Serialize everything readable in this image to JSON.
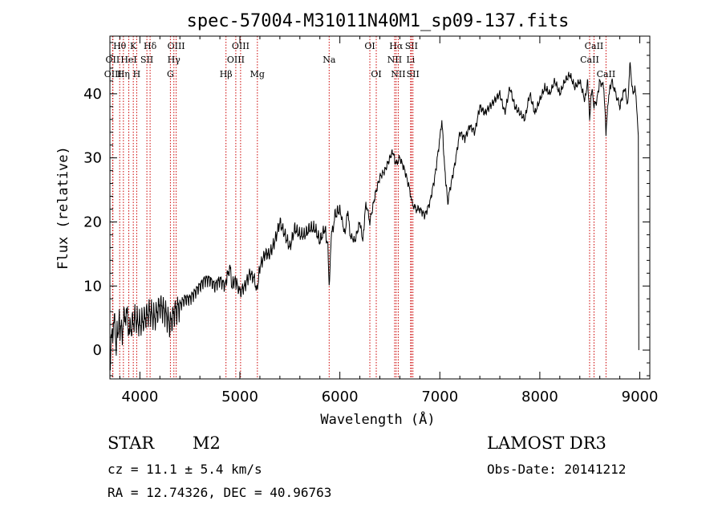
{
  "chart_data": {
    "type": "line",
    "title": "spec-57004-M31011N40M1_sp09-137.fits",
    "xlabel": "Wavelength (Å)",
    "ylabel": "Flux (relative)",
    "xlim": [
      3700,
      9100
    ],
    "ylim": [
      -4.5,
      49
    ],
    "xticks": [
      4000,
      5000,
      6000,
      7000,
      8000,
      9000
    ],
    "yticks": [
      0,
      10,
      20,
      30,
      40
    ],
    "series": [
      {
        "name": "spectrum",
        "x": [
          3700,
          3720,
          3740,
          3760,
          3790,
          3820,
          3860,
          3900,
          3950,
          4000,
          4050,
          4100,
          4150,
          4200,
          4250,
          4300,
          4350,
          4400,
          4450,
          4500,
          4550,
          4600,
          4650,
          4700,
          4750,
          4800,
          4850,
          4880,
          4900,
          4920,
          4950,
          4980,
          5000,
          5050,
          5100,
          5150,
          5170,
          5200,
          5250,
          5300,
          5350,
          5400,
          5450,
          5500,
          5550,
          5600,
          5650,
          5700,
          5750,
          5800,
          5850,
          5880,
          5893,
          5910,
          5950,
          6000,
          6050,
          6080,
          6100,
          6150,
          6200,
          6230,
          6260,
          6300,
          6350,
          6400,
          6450,
          6500,
          6530,
          6560,
          6600,
          6650,
          6700,
          6720,
          6760,
          6800,
          6850,
          6900,
          6950,
          7000,
          7020,
          7050,
          7080,
          7100,
          7150,
          7200,
          7250,
          7300,
          7350,
          7400,
          7450,
          7500,
          7550,
          7600,
          7650,
          7700,
          7750,
          7800,
          7850,
          7900,
          7950,
          8000,
          8050,
          8100,
          8150,
          8200,
          8250,
          8300,
          8350,
          8400,
          8450,
          8480,
          8498,
          8520,
          8542,
          8570,
          8600,
          8640,
          8662,
          8690,
          8720,
          8760,
          8800,
          8850,
          8880,
          8900,
          8930,
          8950,
          8970,
          8985,
          8990
        ],
        "values": [
          -2,
          2,
          5,
          1,
          4,
          3,
          6,
          3,
          5,
          4,
          5,
          6,
          5,
          7,
          6,
          4,
          6,
          7,
          8,
          8,
          9,
          10,
          11,
          11,
          10,
          11,
          10,
          12,
          13,
          10,
          11,
          10,
          9,
          10,
          12,
          11,
          9,
          13,
          15,
          15,
          17,
          20,
          18,
          16,
          19,
          18,
          18,
          19,
          19,
          17,
          19,
          16,
          10,
          17,
          21,
          22,
          18,
          22,
          18,
          17,
          20,
          17,
          23,
          20,
          24,
          27,
          28,
          30,
          31,
          29,
          30,
          28,
          25,
          23,
          22,
          22,
          21,
          23,
          27,
          33,
          36,
          28,
          23,
          25,
          29,
          34,
          33,
          35,
          34,
          38,
          37,
          38,
          39,
          40,
          37,
          41,
          38,
          37,
          36,
          40,
          37,
          39,
          41,
          40,
          42,
          40,
          42,
          43,
          41,
          42,
          39,
          42,
          36,
          41,
          38,
          39,
          42,
          41,
          34,
          40,
          42,
          40,
          38,
          41,
          38,
          45,
          40,
          41,
          38,
          33,
          0
        ]
      }
    ],
    "line_markers": [
      {
        "label": "Hθ",
        "x": 3798,
        "row": 1
      },
      {
        "label": "OII",
        "x": 3727,
        "row": 2
      },
      {
        "label": "OIII",
        "x": 3730,
        "row": 3
      },
      {
        "label": "K",
        "x": 3934,
        "row": 1
      },
      {
        "label": "HeI",
        "x": 3889,
        "row": 2
      },
      {
        "label": "Hη",
        "x": 3835,
        "row": 3
      },
      {
        "label": "SII",
        "x": 4070,
        "row": 2
      },
      {
        "label": "H",
        "x": 3968,
        "row": 3
      },
      {
        "label": "Hδ",
        "x": 4102,
        "row": 1
      },
      {
        "label": "OIII",
        "x": 4363,
        "row": 1
      },
      {
        "label": "Hγ",
        "x": 4340,
        "row": 2
      },
      {
        "label": "G",
        "x": 4305,
        "row": 3
      },
      {
        "label": "OIII",
        "x": 5007,
        "row": 1
      },
      {
        "label": "OIII",
        "x": 4959,
        "row": 2
      },
      {
        "label": "Hβ",
        "x": 4861,
        "row": 3
      },
      {
        "label": "Mg",
        "x": 5175,
        "row": 3
      },
      {
        "label": "Na",
        "x": 5893,
        "row": 2
      },
      {
        "label": "OI",
        "x": 6300,
        "row": 1
      },
      {
        "label": "OI",
        "x": 6364,
        "row": 3
      },
      {
        "label": "Hα",
        "x": 6563,
        "row": 1
      },
      {
        "label": "SII",
        "x": 6716,
        "row": 1
      },
      {
        "label": "NII",
        "x": 6548,
        "row": 2
      },
      {
        "label": "Li",
        "x": 6708,
        "row": 2
      },
      {
        "label": "NII",
        "x": 6584,
        "row": 3
      },
      {
        "label": "SII",
        "x": 6731,
        "row": 3
      },
      {
        "label": "CaII",
        "x": 8542,
        "row": 1
      },
      {
        "label": "CaII",
        "x": 8498,
        "row": 2
      },
      {
        "label": "CaII",
        "x": 8662,
        "row": 3
      }
    ]
  },
  "info": {
    "object_class": "STAR",
    "subclass": "M2",
    "survey": "LAMOST DR3",
    "redshift": "cz = 11.1 ± 5.4 km/s",
    "obs_date": "Obs-Date: 20141212",
    "coords": "RA =  12.74326, DEC =  40.96763"
  },
  "colors": {
    "line": "#000000",
    "marker": "#cc0000"
  }
}
